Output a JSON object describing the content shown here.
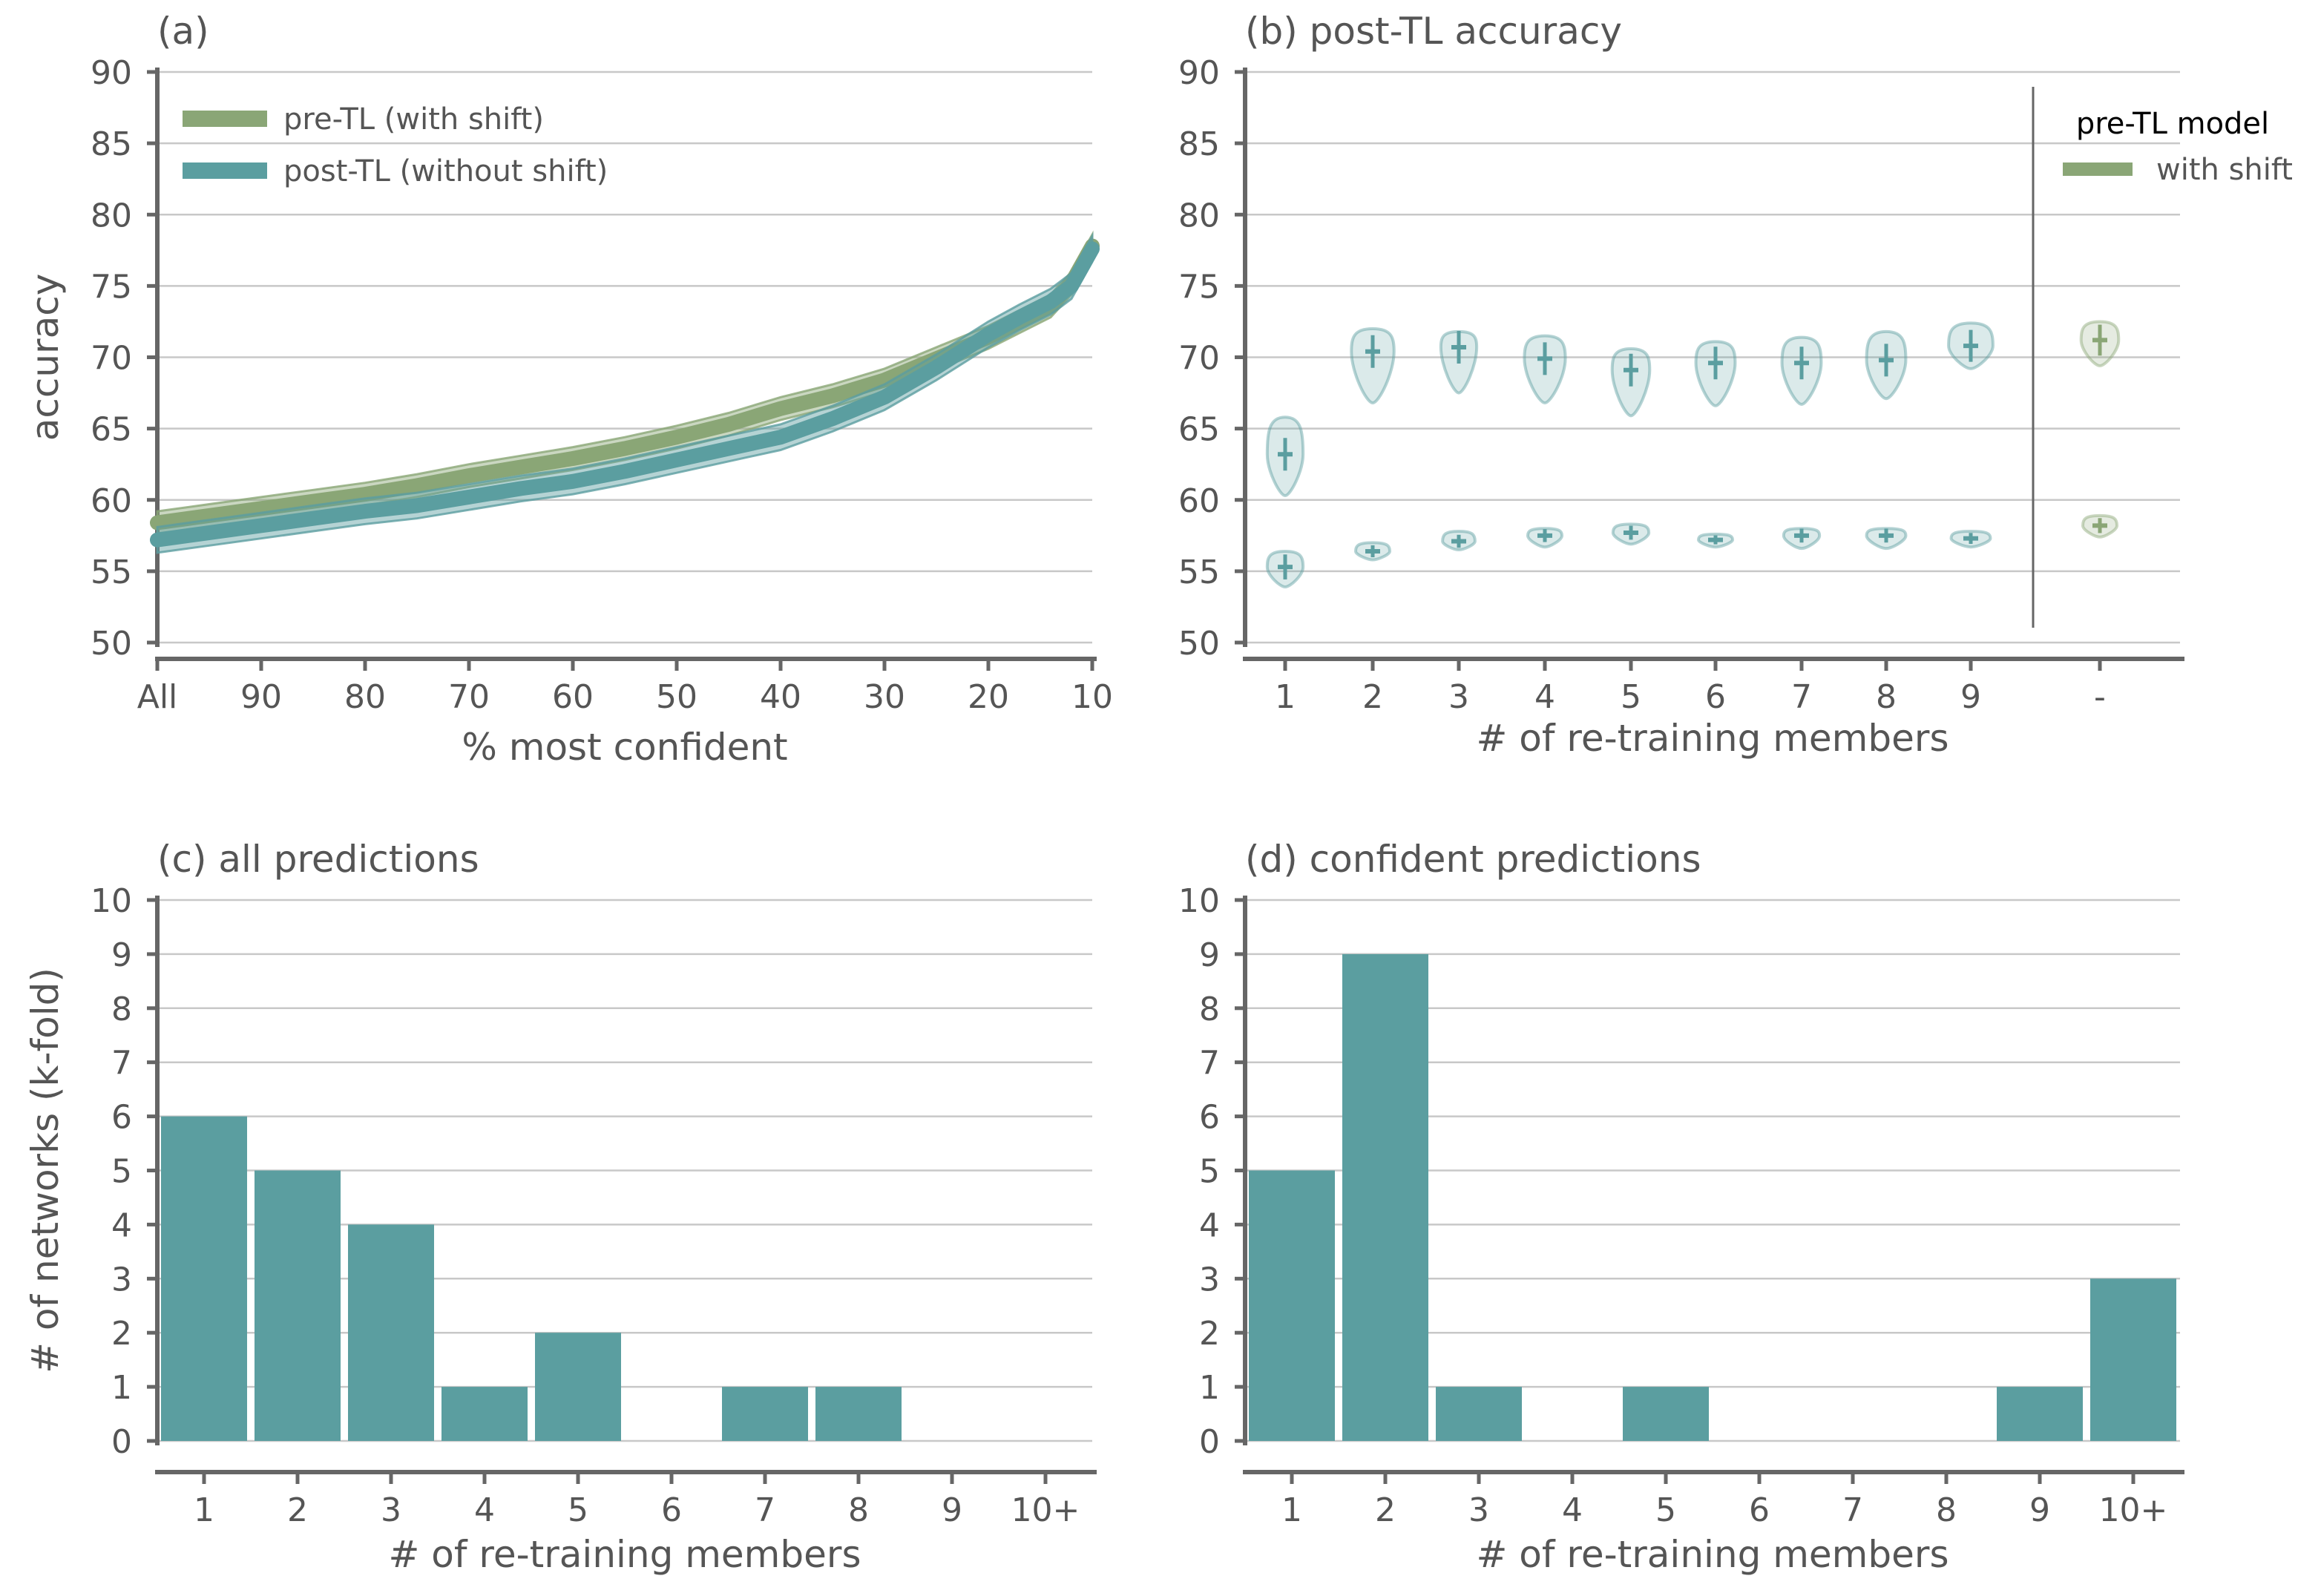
{
  "colors": {
    "pre": "#8aa676",
    "post": "#5b9ea0",
    "grid": "#c8c8c8",
    "axis": "#666666",
    "text": "#555555"
  },
  "chart_data": [
    {
      "id": "a",
      "type": "line",
      "title": "(a)",
      "xlabel": "% most confident",
      "ylabel": "accuracy",
      "ylim": [
        50,
        90
      ],
      "yticks": [
        50,
        55,
        60,
        65,
        70,
        75,
        80,
        85,
        90
      ],
      "xlim": [
        100,
        10
      ],
      "xticks": [
        100,
        90,
        80,
        70,
        60,
        50,
        40,
        30,
        20,
        10
      ],
      "xtick_labels": [
        "All",
        "90",
        "80",
        "70",
        "60",
        "50",
        "40",
        "30",
        "20",
        "10"
      ],
      "grid": true,
      "legend_position": "top-left",
      "x": [
        100,
        95,
        90,
        85,
        80,
        75,
        70,
        65,
        60,
        55,
        50,
        45,
        40,
        35,
        30,
        25,
        20,
        17,
        14,
        12,
        10
      ],
      "series": [
        {
          "name": "pre-TL (with shift)",
          "color": "pre",
          "values": [
            58.4,
            58.9,
            59.4,
            59.9,
            60.4,
            61.0,
            61.7,
            62.3,
            62.9,
            63.6,
            64.4,
            65.3,
            66.4,
            67.3,
            68.4,
            69.9,
            71.4,
            72.5,
            73.6,
            75.2,
            77.8
          ],
          "band": 0.8
        },
        {
          "name": "post-TL (without shift)",
          "color": "post",
          "values": [
            57.2,
            57.7,
            58.2,
            58.7,
            59.2,
            59.6,
            60.2,
            60.8,
            61.3,
            62.0,
            62.8,
            63.6,
            64.4,
            65.7,
            67.2,
            69.3,
            71.6,
            72.8,
            73.9,
            75.0,
            77.6
          ],
          "band": 0.9
        }
      ]
    },
    {
      "id": "b",
      "type": "violin",
      "title": "(b) post-TL accuracy",
      "xlabel": "# of re-training members",
      "ylim": [
        50,
        90
      ],
      "yticks": [
        50,
        55,
        60,
        65,
        70,
        75,
        80,
        85,
        90
      ],
      "categories": [
        "1",
        "2",
        "3",
        "4",
        "5",
        "6",
        "7",
        "8",
        "9",
        "-"
      ],
      "grid": true,
      "legend_title": "pre-TL model",
      "legend_entries": [
        "with shift"
      ],
      "legend_position": "top-right",
      "upper": [
        {
          "c": 63.2,
          "lo": 60.3,
          "hi": 65.8,
          "w": 0.42,
          "color": "post"
        },
        {
          "c": 70.4,
          "lo": 66.8,
          "hi": 72.0,
          "w": 0.5,
          "color": "post"
        },
        {
          "c": 70.7,
          "lo": 67.5,
          "hi": 71.8,
          "w": 0.42,
          "color": "post"
        },
        {
          "c": 69.9,
          "lo": 66.8,
          "hi": 71.5,
          "w": 0.48,
          "color": "post"
        },
        {
          "c": 69.1,
          "lo": 65.9,
          "hi": 70.6,
          "w": 0.44,
          "color": "post"
        },
        {
          "c": 69.6,
          "lo": 66.6,
          "hi": 71.1,
          "w": 0.46,
          "color": "post"
        },
        {
          "c": 69.6,
          "lo": 66.7,
          "hi": 71.4,
          "w": 0.46,
          "color": "post"
        },
        {
          "c": 69.8,
          "lo": 67.1,
          "hi": 71.8,
          "w": 0.46,
          "color": "post"
        },
        {
          "c": 70.8,
          "lo": 69.2,
          "hi": 72.4,
          "w": 0.52,
          "color": "post"
        },
        {
          "c": 71.2,
          "lo": 69.4,
          "hi": 72.5,
          "w": 0.44,
          "color": "pre"
        }
      ],
      "lower": [
        {
          "c": 55.3,
          "lo": 53.9,
          "hi": 56.4,
          "w": 0.42,
          "color": "post"
        },
        {
          "c": 56.4,
          "lo": 55.8,
          "hi": 57.0,
          "w": 0.4,
          "color": "post"
        },
        {
          "c": 57.1,
          "lo": 56.5,
          "hi": 57.8,
          "w": 0.38,
          "color": "post"
        },
        {
          "c": 57.5,
          "lo": 56.7,
          "hi": 58.0,
          "w": 0.4,
          "color": "post"
        },
        {
          "c": 57.7,
          "lo": 56.9,
          "hi": 58.3,
          "w": 0.42,
          "color": "post"
        },
        {
          "c": 57.2,
          "lo": 56.7,
          "hi": 57.6,
          "w": 0.4,
          "color": "post"
        },
        {
          "c": 57.5,
          "lo": 56.6,
          "hi": 58.0,
          "w": 0.42,
          "color": "post"
        },
        {
          "c": 57.5,
          "lo": 56.6,
          "hi": 58.0,
          "w": 0.46,
          "color": "post"
        },
        {
          "c": 57.3,
          "lo": 56.7,
          "hi": 57.8,
          "w": 0.46,
          "color": "post"
        },
        {
          "c": 58.2,
          "lo": 57.4,
          "hi": 58.9,
          "w": 0.4,
          "color": "pre"
        }
      ]
    },
    {
      "id": "c",
      "type": "bar",
      "title": "(c) all predictions",
      "xlabel": "# of re-training members",
      "ylabel": "# of networks (k-fold)",
      "ylim": [
        0,
        10
      ],
      "yticks": [
        0,
        1,
        2,
        3,
        4,
        5,
        6,
        7,
        8,
        9,
        10
      ],
      "categories": [
        "1",
        "2",
        "3",
        "4",
        "5",
        "6",
        "7",
        "8",
        "9",
        "10+"
      ],
      "values": [
        6,
        5,
        4,
        1,
        2,
        0,
        1,
        1,
        0,
        0
      ],
      "grid": true
    },
    {
      "id": "d",
      "type": "bar",
      "title": "(d) confident predictions",
      "xlabel": "# of re-training members",
      "ylim": [
        0,
        10
      ],
      "yticks": [
        0,
        1,
        2,
        3,
        4,
        5,
        6,
        7,
        8,
        9,
        10
      ],
      "categories": [
        "1",
        "2",
        "3",
        "4",
        "5",
        "6",
        "7",
        "8",
        "9",
        "10+"
      ],
      "values": [
        5,
        9,
        1,
        0,
        1,
        0,
        0,
        0,
        1,
        3
      ],
      "grid": true
    }
  ]
}
